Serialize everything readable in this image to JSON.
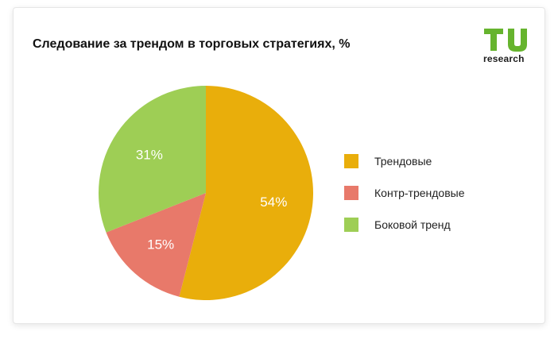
{
  "chart_data": {
    "type": "pie",
    "title": "Следование за трендом в торговых стратегиях, %",
    "categories": [
      "Трендовые",
      "Контр-трендовые",
      "Боковой тренд"
    ],
    "values": [
      54,
      15,
      31
    ],
    "labels": [
      "54%",
      "15%",
      "31%"
    ],
    "colors": [
      "#e9ae0b",
      "#e8796a",
      "#9ece55"
    ],
    "legend_position": "right",
    "start_angle": "top",
    "direction": "clockwise"
  },
  "logo": {
    "mark": "TU",
    "word": "research",
    "mark_color": "#66b42e"
  }
}
